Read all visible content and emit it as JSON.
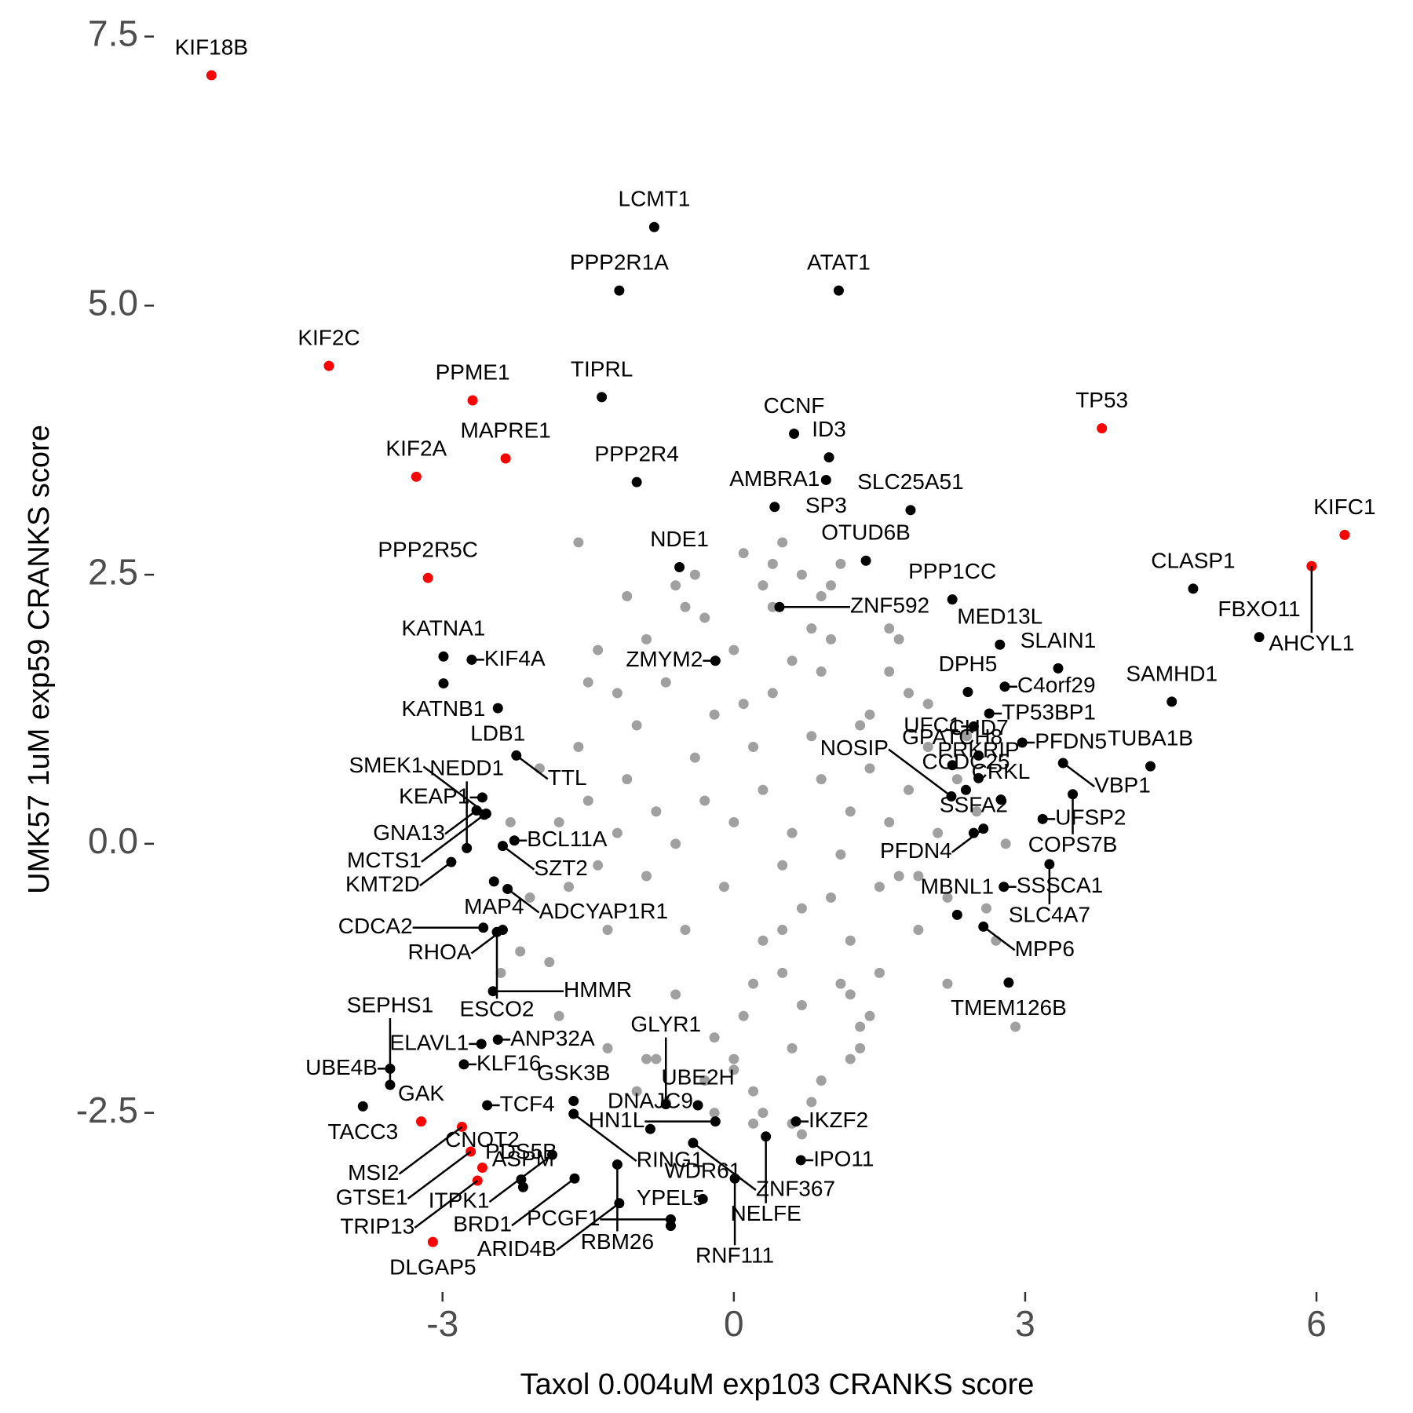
{
  "chart_data": {
    "type": "scatter",
    "x_label": "Taxol 0.004uM exp103 CRANKS score",
    "y_label": "UMK57 1uM exp59 CRANKS score",
    "xlim": [
      -5.9,
      6.8
    ],
    "ylim": [
      -4.1,
      7.65
    ],
    "xticks": [
      -3,
      0,
      3,
      6
    ],
    "yticks": [
      -2.5,
      {
        "value": 0,
        "label": "0.0"
      },
      2.5,
      {
        "value": 5,
        "label": "5.0"
      },
      7.5
    ],
    "grid": false,
    "series": [
      {
        "color": "#a0a0a0",
        "x": [
          0.0,
          0.3,
          0.6,
          -0.3,
          0.9,
          1.2,
          -0.6,
          0.2,
          0.5,
          -0.1,
          0.8,
          1.1,
          -0.4,
          1.4,
          -0.8,
          0.1,
          0.4,
          0.7,
          1.0,
          -0.2,
          1.3,
          1.6,
          -0.9,
          -1.1,
          0.3,
          0.6,
          0.9,
          -0.5,
          1.2,
          1.5,
          -1.2,
          0.0,
          0.5,
          1.8,
          -0.7,
          2.0,
          -1.4,
          0.2,
          0.8,
          1.1,
          -0.3,
          1.7,
          -1.0,
          0.4,
          1.4,
          -1.5,
          2.1,
          0.1,
          0.7,
          -0.6,
          1.9,
          -1.6,
          2.3,
          0.3,
          1.0,
          -0.9,
          1.3,
          -1.3,
          0.6,
          -0.2,
          2.2,
          -1.8,
          0.9,
          0.0,
          1.6,
          -1.2,
          2.5,
          -0.5,
          0.4,
          1.2,
          -1.7,
          2.4,
          0.2,
          -0.8,
          1.5,
          -2.0,
          0.7,
          -0.3,
          1.8,
          -1.4,
          0.5,
          2.6,
          -2.1,
          1.1,
          -0.7,
          0.9,
          -1.9,
          1.7,
          0.1,
          -1.0,
          2.0,
          -0.4,
          0.6,
          1.3,
          -1.5,
          2.8,
          -2.3,
          0.3,
          -1.1,
          1.0,
          0.8,
          -0.6,
          1.4,
          -1.8,
          2.2,
          0.0,
          -1.3,
          1.6,
          -0.2,
          0.5,
          -2.2,
          2.7,
          1.9,
          -0.9,
          0.2,
          1.2,
          -1.6,
          0.7,
          2.9,
          -2.4
        ],
        "values": [
          0.2,
          0.5,
          0.1,
          0.4,
          0.6,
          0.3,
          0.0,
          0.9,
          -0.2,
          -0.4,
          1.0,
          -0.1,
          0.8,
          0.7,
          0.3,
          1.3,
          1.4,
          -0.6,
          -0.5,
          1.2,
          1.1,
          0.2,
          -0.3,
          0.6,
          -0.9,
          1.7,
          1.6,
          -0.8,
          -0.9,
          -0.4,
          0.1,
          1.8,
          -1.2,
          0.5,
          1.5,
          0.9,
          -0.2,
          -1.3,
          2.0,
          -1.3,
          2.1,
          -0.3,
          1.1,
          2.2,
          1.2,
          0.4,
          0.1,
          -1.6,
          -1.5,
          -1.4,
          -0.8,
          0.9,
          0.6,
          2.4,
          1.9,
          1.9,
          -1.7,
          -0.8,
          -1.9,
          -1.8,
          -0.5,
          0.2,
          2.3,
          -2.0,
          1.6,
          1.4,
          0.3,
          2.2,
          2.6,
          -2.0,
          -0.4,
          1.0,
          -2.3,
          -2.0,
          -1.2,
          0.7,
          2.5,
          -2.2,
          1.4,
          1.8,
          -0.8,
          -0.6,
          -0.5,
          2.6,
          -2.4,
          -2.2,
          -1.1,
          1.9,
          2.7,
          -2.3,
          1.3,
          2.5,
          -2.6,
          -1.9,
          1.5,
          0.0,
          0.2,
          -2.5,
          2.3,
          2.4,
          -2.4,
          2.4,
          -1.6,
          -1.6,
          -1.3,
          -2.1,
          -1.9,
          2.0,
          -2.5,
          2.8,
          -1.0,
          -0.9,
          -0.3,
          -2.0,
          -2.6,
          -1.4,
          2.8,
          -2.7,
          -1.7,
          -1.2
        ]
      },
      {
        "color": "#000000",
        "labels": [
          "LCMT1",
          "PPP2R1A",
          "ATAT1",
          "TIPRL",
          "CCNF",
          "ID3",
          "PPP2R4",
          "SP3",
          "AMBRA1",
          "SLC25A51",
          "OTUD6B",
          "MED13L",
          "PPP1CC",
          "NDE1",
          "ZNF592",
          "ZMYM2",
          "CLASP1",
          "FBXO11",
          "SLAIN1",
          "C4orf29",
          "DPH5",
          "TP53BP1",
          "SAMHD1",
          "UFC1",
          "GPATCH8",
          "PFDN5",
          "CHD7",
          "PRKRIP",
          "VBP1",
          "TUBA1B",
          "COPS7B",
          "CCDC25",
          "CRKL",
          "NOSIP",
          "UFSP2",
          "PFDN4",
          "SSFA2",
          "SLC4A7",
          "SSSCA1",
          "MPP6",
          "MBNL1",
          "TMEM126B",
          "KATNA1",
          "KIF4A",
          "KATNB1",
          "LDB1",
          "TTL",
          "KEAP1",
          "GNA13",
          "MCTS1",
          "SMEK1",
          "BCL11A",
          "SZT2",
          "NEDD1",
          "KMT2D",
          "MAP4",
          "ADCYAP1R1",
          "RHOA",
          "CDCA2",
          "ESCO2",
          "HMMR",
          "KLF16",
          "ELAVL1",
          "ANP32A",
          "UBE4B",
          "SEPHS1",
          "TACC3",
          "TCF4",
          "GSK3B",
          "RING1",
          "GLYR1",
          "HN1L",
          "UBE2H",
          "ZNF367",
          "IKZF2",
          "DNAJC9",
          "RBM26",
          "NELFE",
          "IPO11",
          "RNF111",
          "WDR61",
          "PCGF1",
          "ARID4B",
          "YPEL5",
          "BRD1",
          "ITPK1",
          "PDS5B",
          "ASPM"
        ],
        "x": [
          -0.82,
          -1.18,
          1.08,
          -1.36,
          0.62,
          0.98,
          -1.0,
          0.95,
          0.42,
          1.82,
          1.36,
          2.74,
          2.25,
          -0.56,
          0.47,
          -0.19,
          4.73,
          5.41,
          3.34,
          2.79,
          2.41,
          2.63,
          4.51,
          2.47,
          2.25,
          2.97,
          2.52,
          2.52,
          3.39,
          4.29,
          3.49,
          2.39,
          2.75,
          2.24,
          3.18,
          2.57,
          2.47,
          3.25,
          2.78,
          2.57,
          2.3,
          2.83,
          -2.99,
          -2.7,
          -2.99,
          -2.43,
          -2.24,
          -2.59,
          -2.65,
          -2.57,
          -2.55,
          -2.26,
          -2.38,
          -2.75,
          -2.91,
          -2.47,
          -2.33,
          -2.38,
          -2.58,
          -2.44,
          -2.48,
          -2.78,
          -2.6,
          -2.43,
          -3.54,
          -3.54,
          -3.82,
          -2.54,
          -1.65,
          -1.65,
          -0.7,
          -0.19,
          -0.37,
          -0.42,
          0.64,
          -0.86,
          -1.2,
          0.33,
          0.69,
          0.01,
          -0.32,
          -0.65,
          -1.18,
          -0.65,
          -1.64,
          -1.87,
          -2.19,
          -2.17
        ],
        "values": [
          5.73,
          5.14,
          5.14,
          4.15,
          3.81,
          3.59,
          3.36,
          3.38,
          3.13,
          3.1,
          2.63,
          1.85,
          2.27,
          2.57,
          2.2,
          1.7,
          2.37,
          1.92,
          1.63,
          1.46,
          1.41,
          1.21,
          1.32,
          1.09,
          0.73,
          0.94,
          0.82,
          0.61,
          0.75,
          0.72,
          0.46,
          0.5,
          0.41,
          0.44,
          0.23,
          0.14,
          0.1,
          -0.19,
          -0.4,
          -0.77,
          -0.66,
          -1.29,
          1.74,
          1.71,
          1.49,
          1.26,
          0.82,
          0.43,
          0.31,
          0.27,
          0.28,
          0.03,
          -0.02,
          -0.04,
          -0.17,
          -0.35,
          -0.42,
          -0.8,
          -0.78,
          -0.82,
          -1.37,
          -2.05,
          -1.86,
          -1.82,
          -2.09,
          -2.24,
          -2.44,
          -2.43,
          -2.39,
          -2.51,
          -2.42,
          -2.58,
          -2.43,
          -2.78,
          -2.58,
          -2.65,
          -2.98,
          -2.72,
          -2.94,
          -3.11,
          -3.3,
          -3.49,
          -3.34,
          -3.55,
          -3.11,
          -2.89,
          -3.12,
          -3.19
        ]
      },
      {
        "color": "#ff0000",
        "labels": [
          "KIF18B",
          "KIF2C",
          "PPME1",
          "MAPRE1",
          "KIF2A",
          "PPP2R5C",
          "TP53",
          "KIFC1",
          "AHCYL1",
          "GAK",
          "MSI2",
          "GTSE1",
          "CNOT2",
          "TRIP13",
          "DLGAP5"
        ],
        "x": [
          -5.38,
          -4.17,
          -2.69,
          -2.35,
          -3.27,
          -3.15,
          3.79,
          6.29,
          5.95,
          -3.22,
          -2.8,
          -2.71,
          -2.59,
          -2.64,
          -3.1
        ],
        "values": [
          7.14,
          4.44,
          4.12,
          3.58,
          3.41,
          2.47,
          3.86,
          2.87,
          2.58,
          -2.58,
          -2.63,
          -2.86,
          -3.01,
          -3.13,
          -3.7
        ]
      }
    ]
  }
}
